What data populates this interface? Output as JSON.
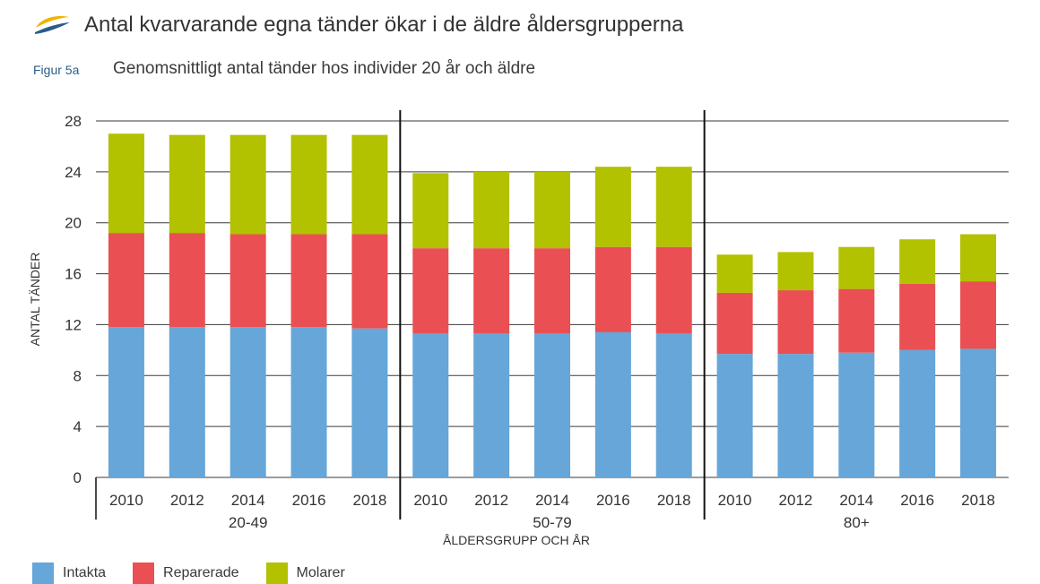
{
  "header": {
    "title": "Antal kvarvarande egna tänder ökar i de äldre åldersgrupperna",
    "logo_colors": [
      "#f0b400",
      "#2a5c8a"
    ]
  },
  "figure": {
    "label": "Figur 5a",
    "subtitle": "Genomsnittligt antal tänder hos individer 20 år och äldre"
  },
  "legend": {
    "items": [
      {
        "label": "Intakta",
        "color": "#66a6d8"
      },
      {
        "label": "Reparerade",
        "color": "#ea5053"
      },
      {
        "label": "Molarer",
        "color": "#b2c100"
      }
    ]
  },
  "chart_data": {
    "type": "bar",
    "stacked": true,
    "ylabel": "ANTAL TÄNDER",
    "xlabel": "ÅLDERSGRUPP OCH ÅR",
    "ylim": [
      0,
      28
    ],
    "yticks": [
      0,
      4,
      8,
      12,
      16,
      20,
      24,
      28
    ],
    "grid": true,
    "groups": [
      "20-49",
      "50-79",
      "80+"
    ],
    "categories": [
      "2010",
      "2012",
      "2014",
      "2016",
      "2018",
      "2010",
      "2012",
      "2014",
      "2016",
      "2018",
      "2010",
      "2012",
      "2014",
      "2016",
      "2018"
    ],
    "series": [
      {
        "color": "#66a6d8",
        "values": [
          11.8,
          11.8,
          11.8,
          11.8,
          11.7,
          11.3,
          11.3,
          11.3,
          11.4,
          11.3,
          9.7,
          9.7,
          9.8,
          10.0,
          10.1
        ]
      },
      {
        "color": "#ea5053",
        "values": [
          7.4,
          7.4,
          7.3,
          7.3,
          7.4,
          6.7,
          6.7,
          6.7,
          6.7,
          6.8,
          4.8,
          5.0,
          5.0,
          5.2,
          5.3
        ]
      },
      {
        "color": "#b2c100",
        "values": [
          7.8,
          7.7,
          7.8,
          7.8,
          7.8,
          5.9,
          6.0,
          6.0,
          6.3,
          6.3,
          3.0,
          3.0,
          3.3,
          3.5,
          3.7
        ]
      }
    ]
  }
}
